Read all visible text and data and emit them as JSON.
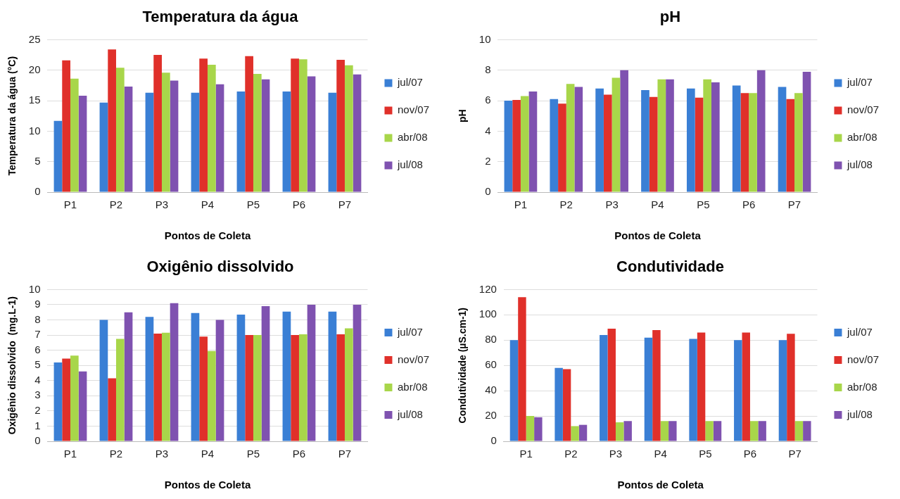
{
  "chart_data": [
    {
      "type": "bar",
      "title": "Temperatura da água",
      "xlabel": "Pontos de Coleta",
      "ylabel": "Temperatura da água (°C)",
      "categories": [
        "P1",
        "P2",
        "P3",
        "P4",
        "P5",
        "P6",
        "P7"
      ],
      "ylim": [
        0,
        25
      ],
      "yticks": [
        0,
        5,
        10,
        15,
        20,
        25
      ],
      "grid": "y",
      "legend": "right",
      "series": [
        {
          "name": "jul/07",
          "color": "#3a7fd5",
          "values": [
            11.7,
            14.7,
            16.3,
            16.3,
            16.5,
            16.5,
            16.3
          ]
        },
        {
          "name": "nov/07",
          "color": "#e0302a",
          "values": [
            21.6,
            23.4,
            22.5,
            21.9,
            22.3,
            21.9,
            21.7
          ]
        },
        {
          "name": "abr/08",
          "color": "#a8d64a",
          "values": [
            18.6,
            20.4,
            19.6,
            20.9,
            19.4,
            21.8,
            20.8
          ]
        },
        {
          "name": "jul/08",
          "color": "#7f52b0",
          "values": [
            15.8,
            17.3,
            18.3,
            17.7,
            18.5,
            19.0,
            19.3
          ]
        }
      ]
    },
    {
      "type": "bar",
      "title": "pH",
      "xlabel": "Pontos de Coleta",
      "ylabel": "pH",
      "categories": [
        "P1",
        "P2",
        "P3",
        "P4",
        "P5",
        "P6",
        "P7"
      ],
      "ylim": [
        0,
        10
      ],
      "yticks": [
        0,
        2,
        4,
        6,
        8,
        10
      ],
      "grid": "y",
      "legend": "right",
      "series": [
        {
          "name": "jul/07",
          "color": "#3a7fd5",
          "values": [
            6.0,
            6.1,
            6.8,
            6.7,
            6.8,
            7.0,
            6.9
          ]
        },
        {
          "name": "nov/07",
          "color": "#e0302a",
          "values": [
            6.05,
            5.8,
            6.4,
            6.25,
            6.2,
            6.5,
            6.1
          ]
        },
        {
          "name": "abr/08",
          "color": "#a8d64a",
          "values": [
            6.3,
            7.1,
            7.5,
            7.4,
            7.4,
            6.5,
            6.5
          ]
        },
        {
          "name": "jul/08",
          "color": "#7f52b0",
          "values": [
            6.6,
            6.9,
            8.0,
            7.4,
            7.2,
            8.0,
            7.9
          ]
        }
      ]
    },
    {
      "type": "bar",
      "title": "Oxigênio dissolvido",
      "xlabel": "Pontos de Coleta",
      "ylabel": "Oxigênio dissolvido  (mg.L-1)",
      "categories": [
        "P1",
        "P2",
        "P3",
        "P4",
        "P5",
        "P6",
        "P7"
      ],
      "ylim": [
        0,
        10
      ],
      "yticks": [
        0,
        1,
        2,
        3,
        4,
        5,
        6,
        7,
        8,
        9,
        10
      ],
      "grid": "y",
      "legend": "right",
      "series": [
        {
          "name": "jul/07",
          "color": "#3a7fd5",
          "values": [
            5.2,
            8.0,
            8.2,
            8.45,
            8.35,
            8.55,
            8.55
          ]
        },
        {
          "name": "nov/07",
          "color": "#e0302a",
          "values": [
            5.45,
            4.15,
            7.1,
            6.9,
            7.0,
            7.0,
            7.05
          ]
        },
        {
          "name": "abr/08",
          "color": "#a8d64a",
          "values": [
            5.65,
            6.75,
            7.15,
            5.95,
            7.0,
            7.05,
            7.45
          ]
        },
        {
          "name": "jul/08",
          "color": "#7f52b0",
          "values": [
            4.6,
            8.5,
            9.1,
            8.0,
            8.9,
            9.0,
            9.0
          ]
        }
      ]
    },
    {
      "type": "bar",
      "title": "Condutividade",
      "xlabel": "Pontos de Coleta",
      "ylabel": "Condutividade (µS.cm-1)",
      "categories": [
        "P1",
        "P2",
        "P3",
        "P4",
        "P5",
        "P6",
        "P7"
      ],
      "ylim": [
        0,
        120
      ],
      "yticks": [
        0,
        20,
        40,
        60,
        80,
        100,
        120
      ],
      "grid": "y",
      "legend": "right",
      "series": [
        {
          "name": "jul/07",
          "color": "#3a7fd5",
          "values": [
            80,
            58,
            84,
            82,
            81,
            80,
            80
          ]
        },
        {
          "name": "nov/07",
          "color": "#e0302a",
          "values": [
            114,
            57,
            89,
            88,
            86,
            86,
            85
          ]
        },
        {
          "name": "abr/08",
          "color": "#a8d64a",
          "values": [
            20,
            12,
            15,
            16,
            16,
            16,
            16
          ]
        },
        {
          "name": "jul/08",
          "color": "#7f52b0",
          "values": [
            19,
            13,
            16,
            16,
            16,
            16,
            16
          ]
        }
      ]
    }
  ]
}
